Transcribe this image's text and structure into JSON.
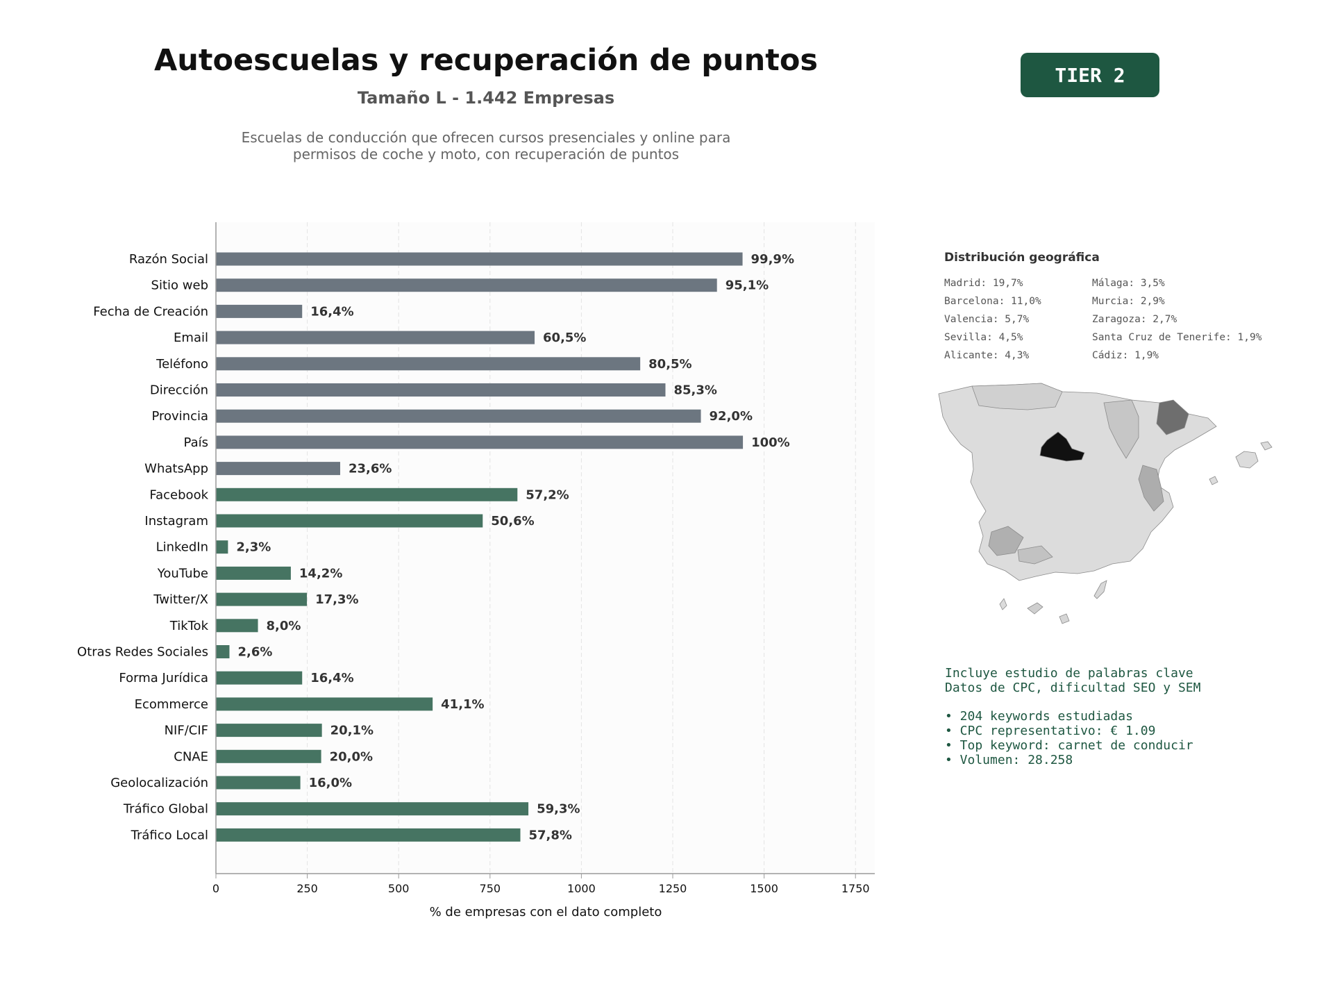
{
  "header": {
    "title": "Autoescuelas y recuperación de puntos",
    "subtitle": "Tamaño L - 1.442 Empresas",
    "description_line1": "Escuelas de conducción que ofrecen cursos presenciales y online para",
    "description_line2": "permisos de coche y moto, con recuperación de puntos",
    "tier": "TIER 2"
  },
  "colors": {
    "contact_bar": "#6c7680",
    "social_bar": "#467462",
    "accent": "#1e5741"
  },
  "chart_data": {
    "type": "bar",
    "orientation": "horizontal",
    "title": "",
    "xlabel": "% de empresas con el dato completo",
    "ylabel": "",
    "xlim": [
      0,
      1800
    ],
    "xticks": [
      "0",
      "250",
      "500",
      "750",
      "1000",
      "1250",
      "1500",
      "1750"
    ],
    "grid": "vertical dashed",
    "categories": [
      "Razón Social",
      "Sitio web",
      "Fecha de Creación",
      "Email",
      "Teléfono",
      "Dirección",
      "Provincia",
      "País",
      "WhatsApp",
      "Facebook",
      "Instagram",
      "LinkedIn",
      "YouTube",
      "Twitter/X",
      "TikTok",
      "Otras Redes Sociales",
      "Forma Jurídica",
      "Ecommerce",
      "NIF/CIF",
      "CNAE",
      "Geolocalización",
      "Tráfico Global",
      "Tráfico Local"
    ],
    "values": [
      1441,
      1371,
      236,
      872,
      1161,
      1230,
      1327,
      1442,
      340,
      825,
      730,
      33,
      205,
      249,
      115,
      37,
      236,
      593,
      290,
      288,
      231,
      855,
      833
    ],
    "labels": [
      "99,9%",
      "95,1%",
      "16,4%",
      "60,5%",
      "80,5%",
      "85,3%",
      "92,0%",
      "100%",
      "23,6%",
      "57,2%",
      "50,6%",
      "2,3%",
      "14,2%",
      "17,3%",
      "8,0%",
      "2,6%",
      "16,4%",
      "41,1%",
      "20,1%",
      "20,0%",
      "16,0%",
      "59,3%",
      "57,8%"
    ],
    "group": [
      "contact",
      "contact",
      "contact",
      "contact",
      "contact",
      "contact",
      "contact",
      "contact",
      "contact",
      "social",
      "social",
      "social",
      "social",
      "social",
      "social",
      "social",
      "social",
      "social",
      "social",
      "social",
      "social",
      "social",
      "social"
    ]
  },
  "geo": {
    "title": "Distribución geográfica",
    "col1": [
      "Madrid: 19,7%",
      "Barcelona: 11,0%",
      "Valencia: 5,7%",
      "Sevilla: 4,5%",
      "Alicante: 4,3%"
    ],
    "col2": [
      "Málaga: 3,5%",
      "Murcia: 2,9%",
      "Zaragoza: 2,7%",
      "Santa Cruz de Tenerife: 1,9%",
      "Cádiz: 1,9%"
    ]
  },
  "seo": {
    "line1": "Incluye estudio de palabras clave",
    "line2": "Datos de CPC, dificultad SEO y SEM",
    "bullets": [
      "• 204 keywords estudiadas",
      "• CPC representativo: € 1.09",
      "• Top keyword: carnet de conducir",
      "• Volumen: 28.258"
    ]
  }
}
